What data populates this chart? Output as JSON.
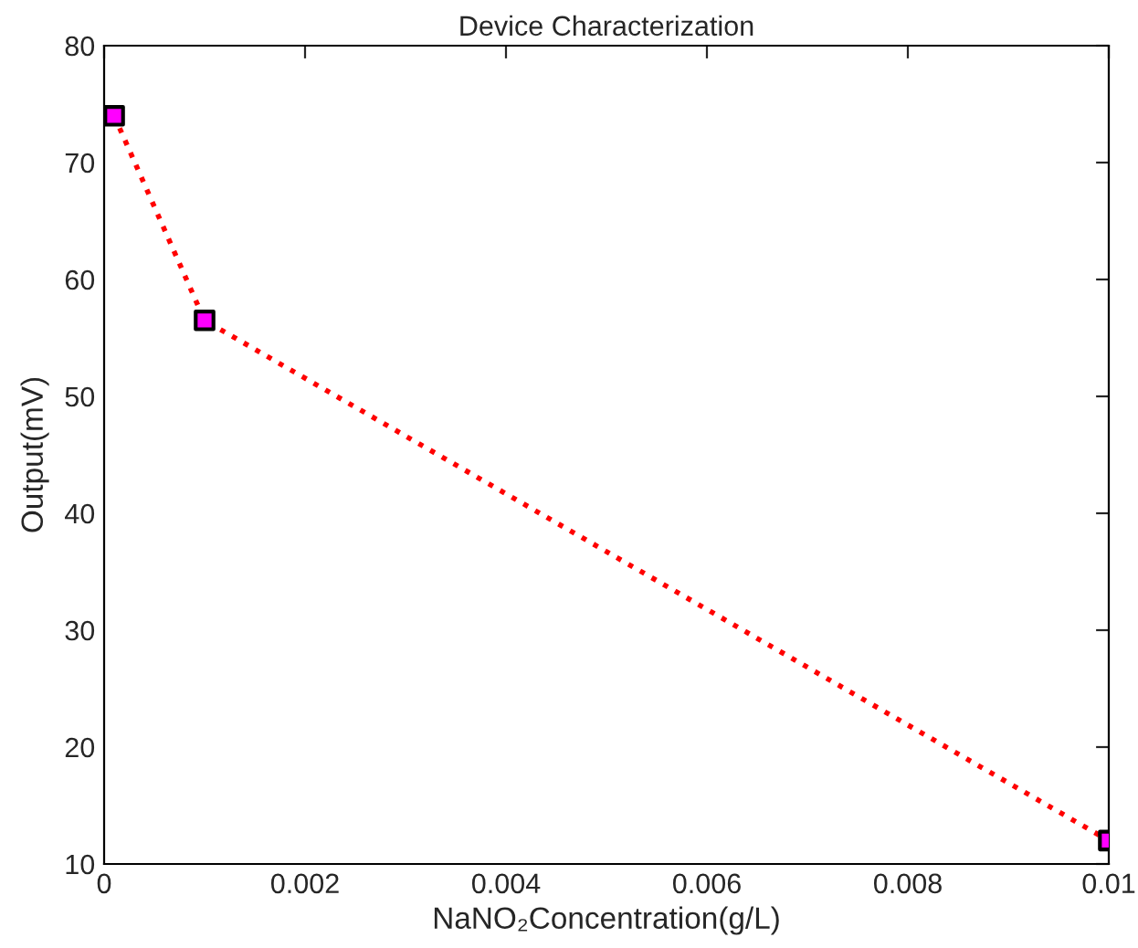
{
  "chart_data": {
    "type": "line",
    "title": "Device Characterization",
    "xlabel": "NaNO₂Concentration(g/L)",
    "ylabel": "Output(mV)",
    "x": [
      0.0001,
      0.001,
      0.01
    ],
    "series": [
      {
        "color": "#ff0000",
        "colors": [
          "#ff00ff",
          "#ff00ff",
          "#ff00ff"
        ],
        "values": [
          74,
          56.5,
          12
        ]
      }
    ],
    "xlim": [
      0,
      0.01
    ],
    "ylim": [
      10,
      80
    ],
    "xticks": [
      0,
      0.002,
      0.004,
      0.006,
      0.008,
      0.01
    ],
    "yticks": [
      10,
      20,
      30,
      40,
      50,
      60,
      70,
      80
    ],
    "grid": false,
    "legend": false,
    "marker": "square",
    "line_style": "dotted"
  }
}
